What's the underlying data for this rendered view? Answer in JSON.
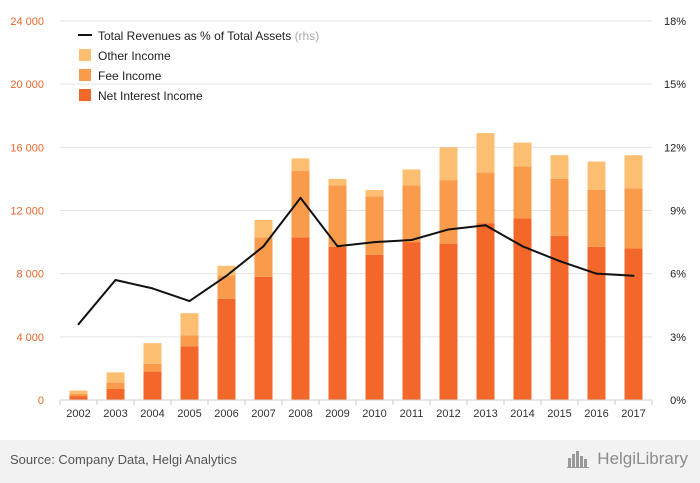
{
  "colors": {
    "net_interest": "#f4672b",
    "fee": "#f99b4b",
    "other": "#fcbf72",
    "line": "#111111",
    "left_axis_text": "#e8662a",
    "grid": "#e3e3e3"
  },
  "chart_data": {
    "type": "bar",
    "title": "",
    "categories": [
      "2002",
      "2003",
      "2004",
      "2005",
      "2006",
      "2007",
      "2008",
      "2009",
      "2010",
      "2011",
      "2012",
      "2013",
      "2014",
      "2015",
      "2016",
      "2017"
    ],
    "series": [
      {
        "name": "Net Interest Income",
        "values": [
          250,
          700,
          1800,
          3400,
          6400,
          7800,
          10300,
          9700,
          9200,
          10000,
          9900,
          11200,
          11500,
          10400,
          9700,
          9600
        ],
        "color": "#f4672b",
        "stack": "revenues"
      },
      {
        "name": "Fee Income",
        "values": [
          150,
          400,
          500,
          700,
          1500,
          2500,
          4200,
          3900,
          3700,
          3600,
          4000,
          3200,
          3300,
          3600,
          3600,
          3800
        ],
        "color": "#f99b4b",
        "stack": "revenues"
      },
      {
        "name": "Other Income",
        "values": [
          200,
          650,
          1300,
          1400,
          600,
          1100,
          800,
          400,
          400,
          1000,
          2100,
          2500,
          1500,
          1500,
          1800,
          2100
        ],
        "color": "#fcbf72",
        "stack": "revenues"
      },
      {
        "name": "Total Revenues as % of Total Assets",
        "axis": "right",
        "type": "line",
        "values": [
          3.6,
          5.7,
          5.3,
          4.7,
          5.9,
          7.3,
          9.6,
          7.3,
          7.5,
          7.6,
          8.1,
          8.3,
          7.3,
          6.6,
          6.0,
          5.9
        ],
        "color": "#111111"
      }
    ],
    "left_axis": {
      "ylim": [
        0,
        24000
      ],
      "ticks": [
        0,
        4000,
        8000,
        12000,
        16000,
        20000,
        24000
      ],
      "tick_labels": [
        "0",
        "4 000",
        "8 000",
        "12 000",
        "16 000",
        "20 000",
        "24 000"
      ]
    },
    "right_axis": {
      "ylim": [
        0,
        18
      ],
      "ticks": [
        0,
        3,
        6,
        9,
        12,
        15,
        18
      ],
      "tick_labels": [
        "0%",
        "3%",
        "6%",
        "9%",
        "12%",
        "15%",
        "18%"
      ]
    },
    "grid": true,
    "legend": {
      "placement": "top-left",
      "items": [
        {
          "label": "Total Revenues as % of Total Assets",
          "suffix": "(rhs)",
          "kind": "line"
        },
        {
          "label": "Other Income",
          "kind": "box"
        },
        {
          "label": "Fee Income",
          "kind": "box"
        },
        {
          "label": "Net Interest Income",
          "kind": "box"
        }
      ]
    }
  },
  "footer": {
    "source": "Source: Company Data, Helgi Analytics",
    "brand": "HelgiLibrary",
    "brand_icon": "city-skyline-icon"
  }
}
